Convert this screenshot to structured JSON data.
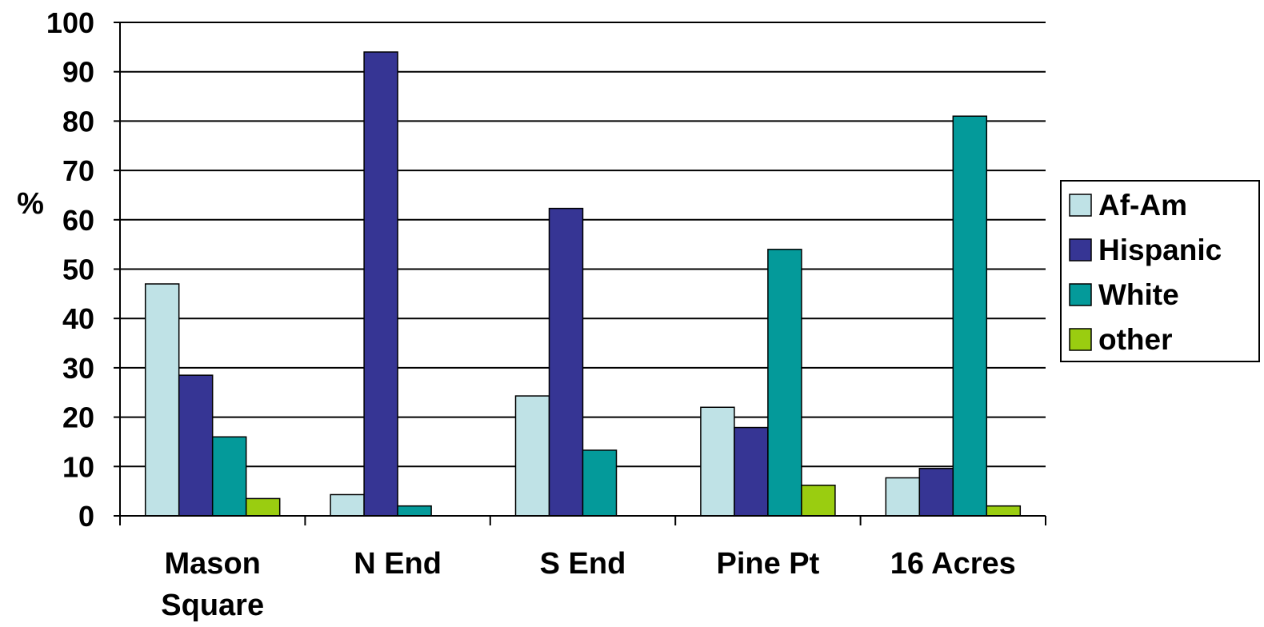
{
  "chart_data": {
    "type": "bar",
    "title": "",
    "xlabel": "",
    "ylabel": "%",
    "ylim": [
      0,
      100
    ],
    "yticks": [
      0,
      10,
      20,
      30,
      40,
      50,
      60,
      70,
      80,
      90,
      100
    ],
    "grid": true,
    "legend_position": "right",
    "categories": [
      [
        "Mason",
        "Square"
      ],
      [
        "N End"
      ],
      [
        "S End"
      ],
      [
        "Pine Pt"
      ],
      [
        "16 Acres"
      ]
    ],
    "series": [
      {
        "name": "Af-Am",
        "color": "#bfe2e6",
        "values": [
          47,
          4.3,
          24.3,
          22,
          7.7
        ]
      },
      {
        "name": "Hispanic",
        "color": "#363594",
        "values": [
          28.5,
          94,
          62.3,
          17.9,
          9.6
        ]
      },
      {
        "name": "White",
        "color": "#049a9a",
        "values": [
          16,
          2,
          13.3,
          54,
          81
        ]
      },
      {
        "name": "other",
        "color": "#9acd10",
        "values": [
          3.5,
          0,
          0,
          6.2,
          2
        ]
      }
    ]
  }
}
